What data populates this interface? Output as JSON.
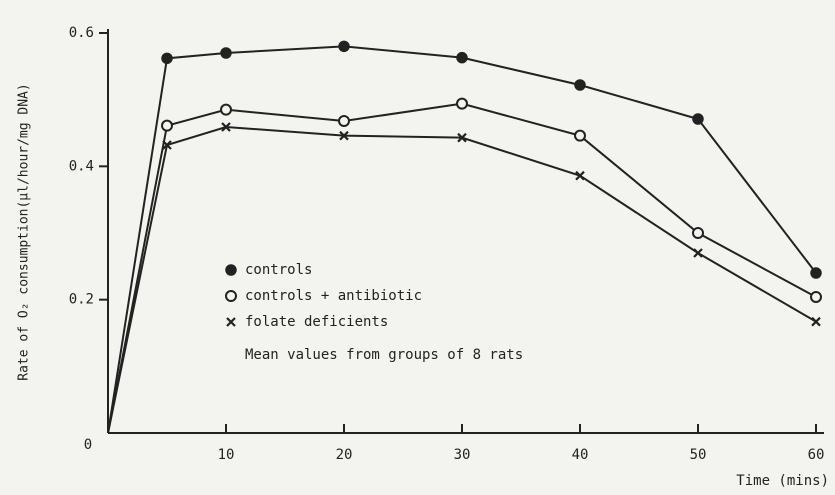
{
  "chart_data": {
    "type": "line",
    "x_label": "Time (mins)",
    "y_label": "Rate of O₂ consumption(μl/hour/mg DNA)",
    "note": "Mean values from groups of 8 rats",
    "x": [
      0,
      5,
      10,
      20,
      30,
      40,
      50,
      60
    ],
    "series": [
      {
        "name": "controls",
        "color": "#222222",
        "marker": "filled-circle",
        "values": [
          0,
          0.562,
          0.57,
          0.58,
          0.563,
          0.522,
          0.471,
          0.24
        ]
      },
      {
        "name": "controls + antibiotic",
        "color": "#222222",
        "marker": "open-circle",
        "values": [
          0,
          0.461,
          0.485,
          0.468,
          0.494,
          0.446,
          0.3,
          0.204
        ]
      },
      {
        "name": "folate deficients",
        "color": "#222222",
        "marker": "x",
        "values": [
          0,
          0.432,
          0.459,
          0.446,
          0.443,
          0.386,
          0.27,
          0.167
        ]
      }
    ],
    "xlim": [
      0,
      60
    ],
    "ylim": [
      0,
      0.6
    ],
    "xticks": [
      0,
      10,
      20,
      30,
      40,
      50,
      60
    ],
    "yticks": [
      0.2,
      0.4,
      0.6
    ],
    "legend": "center"
  }
}
